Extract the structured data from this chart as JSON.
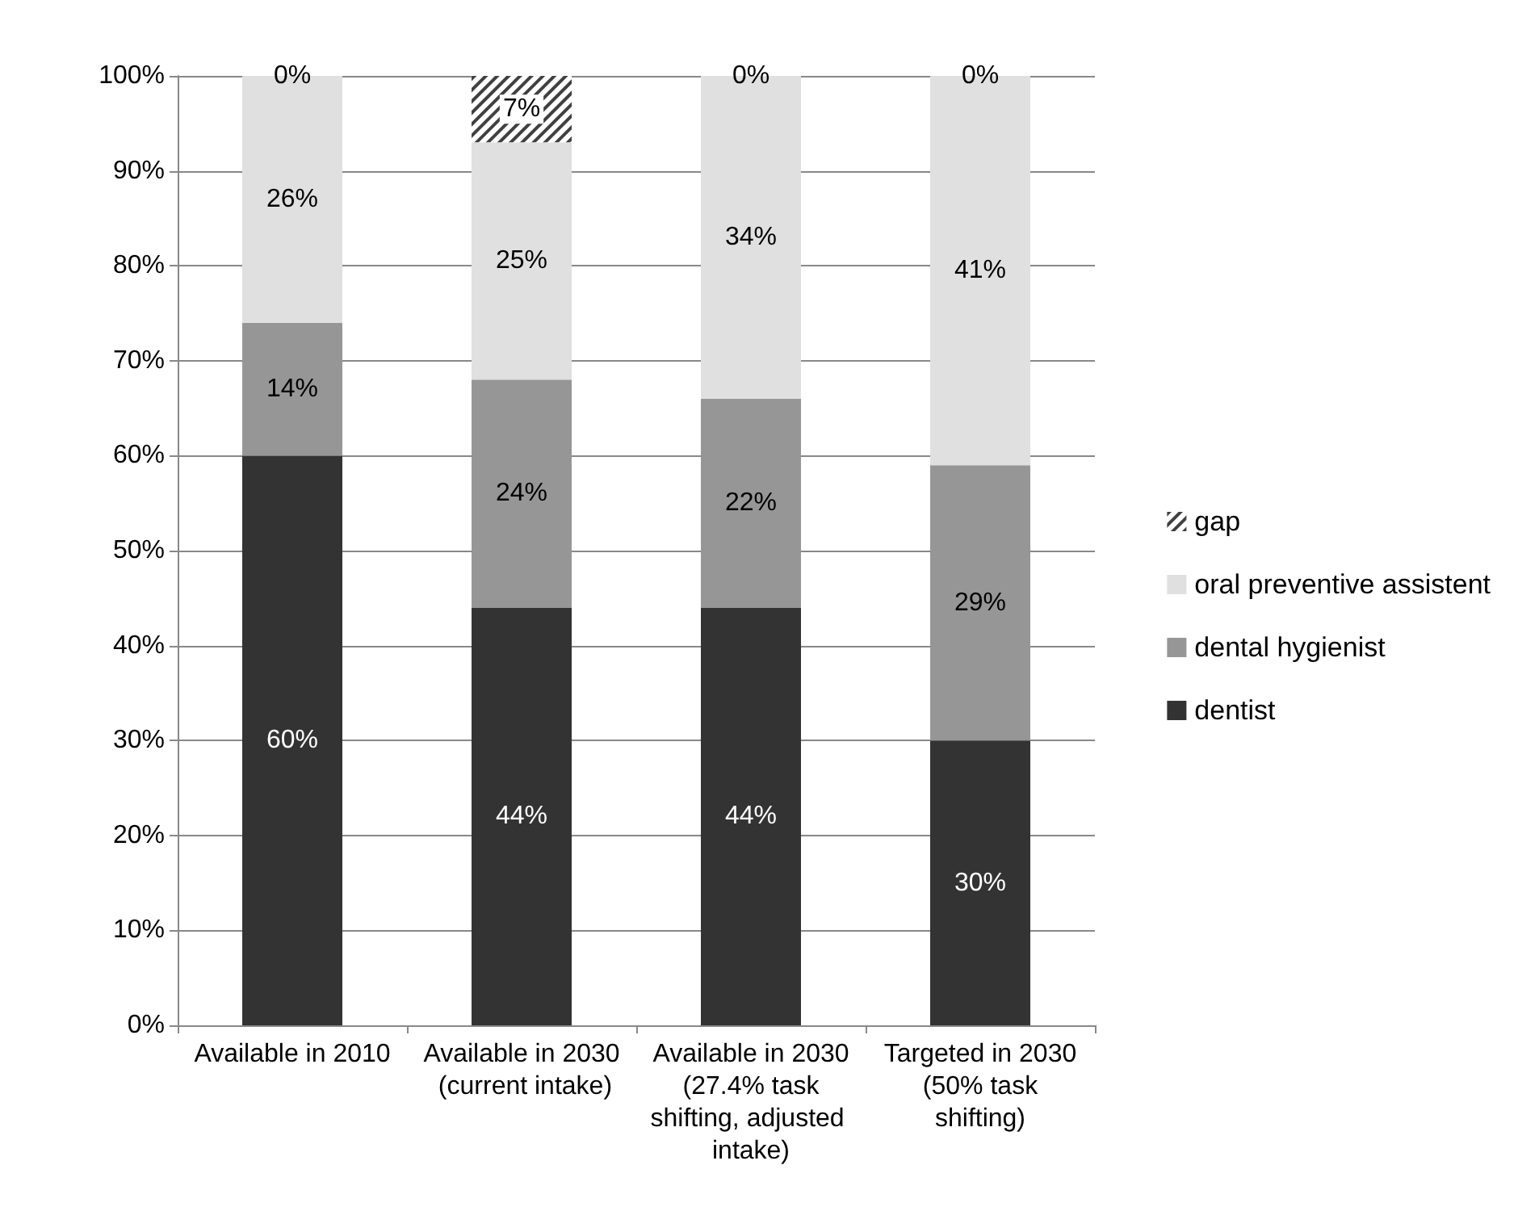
{
  "chart_data": {
    "type": "bar",
    "stacked": true,
    "categories": [
      "Available in 2010",
      "Available in 2030 (current intake)",
      "Available in 2030 (27.4% task shifting, adjusted intake)",
      "Targeted in 2030 (50% task shifting)"
    ],
    "series": [
      {
        "name": "dentist",
        "color": "#333333",
        "values": [
          60,
          44,
          44,
          30
        ],
        "value_labels": [
          "60%",
          "44%",
          "44%",
          "30%"
        ]
      },
      {
        "name": "dental hygienist",
        "color": "#969696",
        "values": [
          14,
          24,
          22,
          29
        ],
        "value_labels": [
          "14%",
          "24%",
          "22%",
          "29%"
        ]
      },
      {
        "name": "oral preventive assistent",
        "color": "#e0e0e0",
        "values": [
          26,
          25,
          34,
          41
        ],
        "value_labels": [
          "26%",
          "25%",
          "34%",
          "41%"
        ]
      },
      {
        "name": "gap",
        "color": "#404040",
        "values": [
          0,
          7,
          0,
          0
        ],
        "value_labels": [
          "0%",
          "7%",
          "0%",
          "0%"
        ]
      }
    ],
    "ylim": [
      0,
      100
    ],
    "yticks": [
      {
        "value": 0,
        "label": "0%"
      },
      {
        "value": 10,
        "label": "10%"
      },
      {
        "value": 20,
        "label": "20%"
      },
      {
        "value": 30,
        "label": "30%"
      },
      {
        "value": 40,
        "label": "40%"
      },
      {
        "value": 50,
        "label": "50%"
      },
      {
        "value": 60,
        "label": "60%"
      },
      {
        "value": 70,
        "label": "70%"
      },
      {
        "value": 80,
        "label": "80%"
      },
      {
        "value": 90,
        "label": "90%"
      },
      {
        "value": 100,
        "label": "100%"
      }
    ],
    "grid": "y",
    "legend": "right"
  }
}
